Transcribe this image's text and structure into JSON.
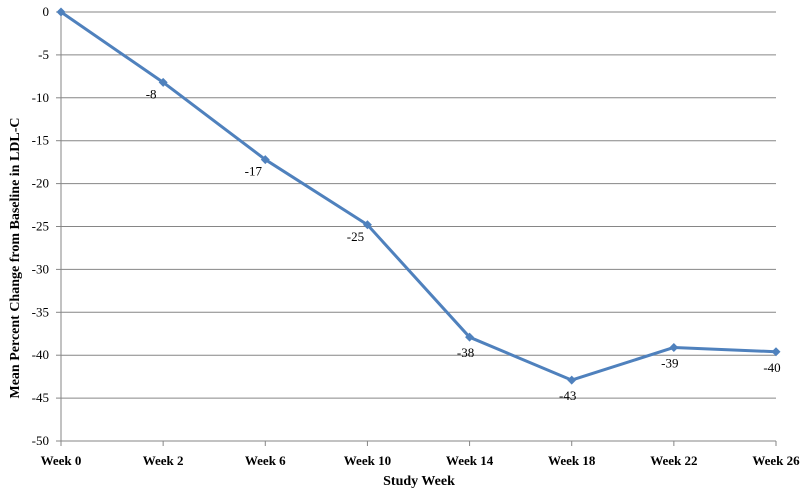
{
  "chart_data": {
    "type": "line",
    "title": "",
    "xlabel": "Study Week",
    "ylabel": "Mean Percent Change from Baseline in LDL-C",
    "categories": [
      "Week 0",
      "Week 2",
      "Week 6",
      "Week 10",
      "Week 14",
      "Week 18",
      "Week 22",
      "Week 26"
    ],
    "series": [
      {
        "values": [
          0,
          -8.2,
          -17.2,
          -24.8,
          -37.9,
          -42.9,
          -39.1,
          -39.6
        ],
        "labels": [
          "",
          "-8",
          "-17",
          "-25",
          "-38",
          "-43",
          "-39",
          "-40"
        ],
        "color": "#4F81BD",
        "marker": "diamond"
      }
    ],
    "ylim": [
      -50,
      0
    ],
    "yticks": [
      0,
      -5,
      -10,
      -15,
      -20,
      -25,
      -30,
      -35,
      -40,
      -45,
      -50
    ],
    "grid": true,
    "legend": "none"
  },
  "colors": {
    "line": "#4F81BD",
    "grid": "#868686",
    "axis": "#868686"
  }
}
